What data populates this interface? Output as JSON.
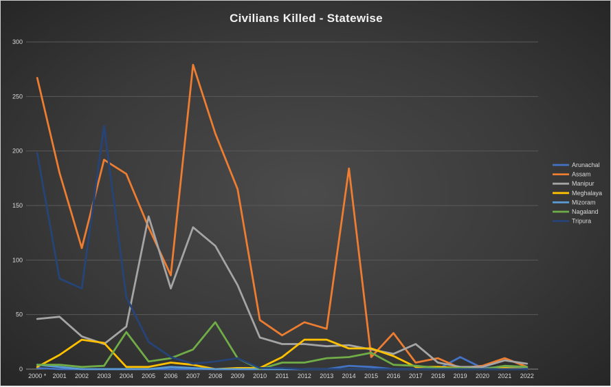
{
  "chart_data": {
    "type": "line",
    "title": "Civilians Killed - Statewise",
    "xlabel": "",
    "ylabel": "",
    "ylim": [
      0,
      300
    ],
    "yticks": [
      0,
      50,
      100,
      150,
      200,
      250,
      300
    ],
    "grid": true,
    "legend_position": "right",
    "categories": [
      "2000 *",
      "2001",
      "2002",
      "2003",
      "2004",
      "2005",
      "2006",
      "2007",
      "2008",
      "2009",
      "2010",
      "2011",
      "2012",
      "2013",
      "2014",
      "2015",
      "2016",
      "2017",
      "2018",
      "2019",
      "2020",
      "2021",
      "2022"
    ],
    "series": [
      {
        "name": "Arunachal",
        "color": "#4472c4",
        "values": [
          1,
          0,
          0,
          0,
          0,
          0,
          0,
          0,
          0,
          0,
          0,
          0,
          0,
          0,
          3,
          2,
          0,
          0,
          0,
          11,
          1,
          2,
          1
        ]
      },
      {
        "name": "Assam",
        "color": "#ed7d31",
        "values": [
          267,
          180,
          111,
          192,
          179,
          130,
          86,
          279,
          216,
          165,
          45,
          31,
          43,
          37,
          184,
          11,
          33,
          6,
          10,
          1,
          3,
          10,
          2
        ]
      },
      {
        "name": "Manipur",
        "color": "#a5a5a5",
        "values": [
          46,
          48,
          30,
          23,
          39,
          140,
          74,
          130,
          113,
          77,
          29,
          23,
          23,
          21,
          22,
          18,
          14,
          23,
          6,
          2,
          2,
          8,
          5
        ]
      },
      {
        "name": "Meghalaya",
        "color": "#ffc000",
        "values": [
          2,
          13,
          27,
          24,
          2,
          2,
          6,
          4,
          0,
          1,
          1,
          11,
          27,
          27,
          19,
          19,
          12,
          2,
          2,
          1,
          0,
          1,
          0
        ]
      },
      {
        "name": "Mizoram",
        "color": "#5b9bd5",
        "values": [
          4,
          2,
          0,
          0,
          0,
          0,
          2,
          1,
          0,
          0,
          0,
          0,
          0,
          0,
          0,
          0,
          0,
          0,
          0,
          0,
          0,
          0,
          0
        ]
      },
      {
        "name": "Nagaland",
        "color": "#70ad47",
        "values": [
          4,
          4,
          2,
          3,
          34,
          7,
          10,
          18,
          43,
          10,
          0,
          6,
          6,
          10,
          11,
          15,
          4,
          3,
          1,
          1,
          0,
          3,
          2
        ]
      },
      {
        "name": "Tripura",
        "color": "#264478",
        "values": [
          198,
          83,
          74,
          223,
          66,
          25,
          11,
          5,
          7,
          10,
          1,
          1,
          0,
          0,
          0,
          0,
          0,
          0,
          0,
          0,
          0,
          0,
          0
        ]
      }
    ]
  }
}
